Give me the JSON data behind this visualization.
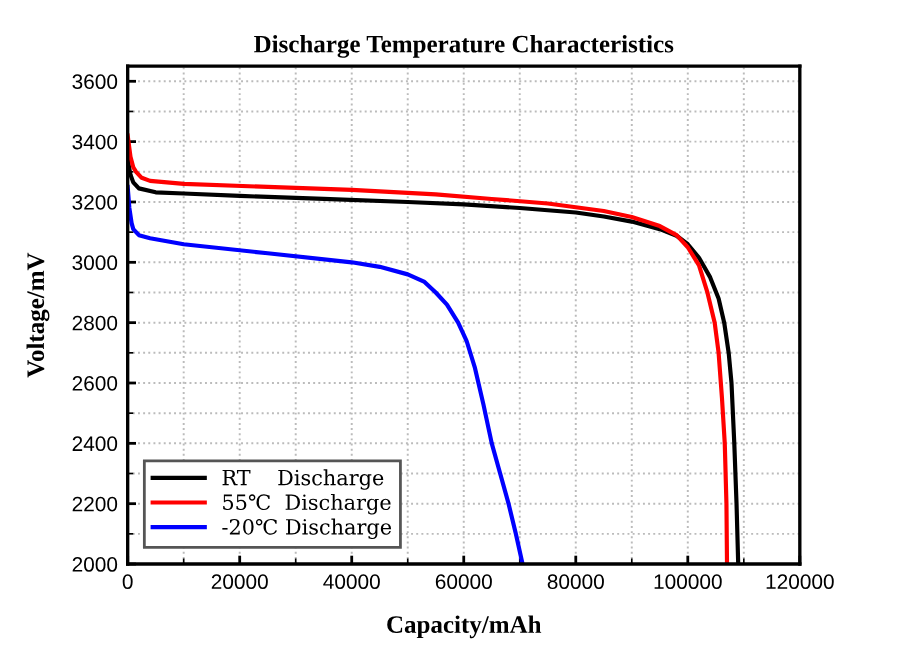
{
  "chart_data": {
    "type": "line",
    "title": "Discharge Temperature Characteristics",
    "xlabel": "Capacity/mAh",
    "ylabel": "Voltage/mV",
    "xlim": [
      0,
      120000
    ],
    "xticks": [
      0,
      20000,
      40000,
      60000,
      80000,
      100000,
      120000
    ],
    "ylim": [
      2000,
      3650
    ],
    "yticks": [
      2000,
      2200,
      2400,
      2600,
      2800,
      3000,
      3200,
      3400,
      3600
    ],
    "grid": true,
    "legend": "bottom left",
    "marker": "none",
    "line_style": "solid",
    "series": [
      {
        "name": "RT    Discharge",
        "color": "#000000",
        "x": [
          0,
          500,
          1000,
          2000,
          5000,
          10000,
          20000,
          35000,
          50000,
          60000,
          70000,
          80000,
          85000,
          90000,
          95000,
          98000,
          100000,
          102000,
          104000,
          105500,
          106500,
          107300,
          107800,
          108300,
          108700,
          109000
        ],
        "values": [
          3340,
          3290,
          3265,
          3245,
          3232,
          3228,
          3220,
          3210,
          3200,
          3192,
          3180,
          3165,
          3152,
          3135,
          3110,
          3088,
          3060,
          3015,
          2950,
          2880,
          2800,
          2700,
          2600,
          2400,
          2200,
          2000
        ]
      },
      {
        "name": "55℃  Discharge",
        "color": "#ff0000",
        "x": [
          0,
          500,
          1000,
          1500,
          2500,
          4000,
          10000,
          25000,
          40000,
          55000,
          65000,
          75000,
          85000,
          90000,
          95000,
          98000,
          100000,
          102000,
          103500,
          104800,
          105500,
          106100,
          106600,
          106900,
          107000
        ],
        "values": [
          3420,
          3350,
          3315,
          3300,
          3280,
          3270,
          3260,
          3250,
          3240,
          3225,
          3210,
          3195,
          3170,
          3150,
          3120,
          3090,
          3050,
          2990,
          2900,
          2800,
          2700,
          2550,
          2400,
          2200,
          2000
        ]
      },
      {
        "name": "-20℃ Discharge",
        "color": "#0000ff",
        "x": [
          0,
          300,
          700,
          1000,
          2000,
          4000,
          10000,
          25000,
          40000,
          45000,
          50000,
          53000,
          55000,
          57000,
          59000,
          60500,
          62000,
          63500,
          65000,
          66500,
          68000,
          69300,
          70500
        ],
        "values": [
          3250,
          3180,
          3130,
          3110,
          3090,
          3080,
          3060,
          3030,
          3000,
          2985,
          2960,
          2935,
          2900,
          2860,
          2800,
          2740,
          2650,
          2530,
          2400,
          2300,
          2200,
          2100,
          2000
        ]
      }
    ]
  }
}
